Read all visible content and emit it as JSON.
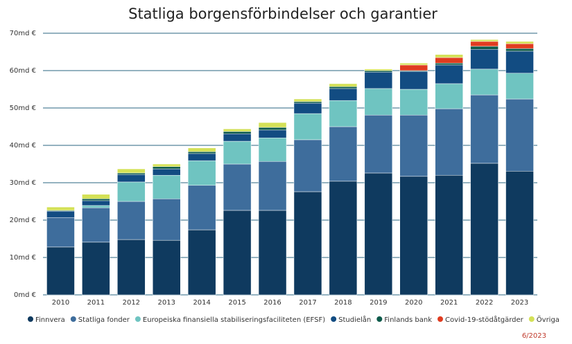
{
  "chart_data": {
    "type": "stacked-bar",
    "title": "Statliga borgensförbindelser och garantier",
    "categories": [
      "2010",
      "2011",
      "2012",
      "2013",
      "2014",
      "2015",
      "2016",
      "2017",
      "2018",
      "2019",
      "2020",
      "2021",
      "2022",
      "2023"
    ],
    "series": [
      {
        "name": "Finnvera",
        "color": "#0f3a5f",
        "values": [
          12.8,
          14.1,
          14.8,
          14.6,
          17.4,
          22.6,
          22.6,
          27.6,
          30.4,
          32.6,
          31.7,
          32.0,
          35.2,
          33.1
        ]
      },
      {
        "name": "Statliga fonder",
        "color": "#3e6d9c",
        "values": [
          7.9,
          9.2,
          10.2,
          11.1,
          11.9,
          12.4,
          13.1,
          13.9,
          14.6,
          15.5,
          16.4,
          17.8,
          18.3,
          19.3
        ]
      },
      {
        "name": "Europeiska finansiella stabiliseringsfaciliteten (EFSF)",
        "color": "#6fc4c1",
        "values": [
          0,
          0.6,
          5.2,
          6.3,
          6.6,
          6.1,
          6.3,
          7.0,
          7.0,
          7.1,
          6.9,
          6.7,
          6.9,
          6.9
        ]
      },
      {
        "name": "Studielån",
        "color": "#124c82",
        "values": [
          1.7,
          1.3,
          2.0,
          1.7,
          1.9,
          2.0,
          2.1,
          2.8,
          3.2,
          4.4,
          4.8,
          5.0,
          5.3,
          5.9
        ]
      },
      {
        "name": "Finlands bank",
        "color": "#0c5a4a",
        "values": [
          0.2,
          0.5,
          0.4,
          0.6,
          0.5,
          0.6,
          0.7,
          0.4,
          0.5,
          0.4,
          0.2,
          0.5,
          0.8,
          0.7
        ]
      },
      {
        "name": "Covid-19-stödåtgärder",
        "color": "#e03c20",
        "values": [
          0,
          0,
          0,
          0,
          0,
          0,
          0,
          0,
          0,
          0,
          1.5,
          1.5,
          1.3,
          1.3
        ]
      },
      {
        "name": "Övriga",
        "color": "#d4e157",
        "values": [
          0.9,
          1.2,
          1.1,
          0.7,
          1.0,
          0.7,
          1.3,
          0.7,
          0.8,
          0.4,
          0.5,
          0.8,
          0.5,
          0.6
        ]
      }
    ],
    "ylim": [
      0,
      70
    ],
    "yticks": [
      {
        "value": 0,
        "label": "0md €"
      },
      {
        "value": 10,
        "label": "10md €"
      },
      {
        "value": 20,
        "label": "20md €"
      },
      {
        "value": 30,
        "label": "30md €"
      },
      {
        "value": 40,
        "label": "40md €"
      },
      {
        "value": 50,
        "label": "50md €"
      },
      {
        "value": 60,
        "label": "60md €"
      },
      {
        "value": 70,
        "label": "70md €"
      }
    ],
    "grid": true,
    "footnote": "6/2023"
  }
}
